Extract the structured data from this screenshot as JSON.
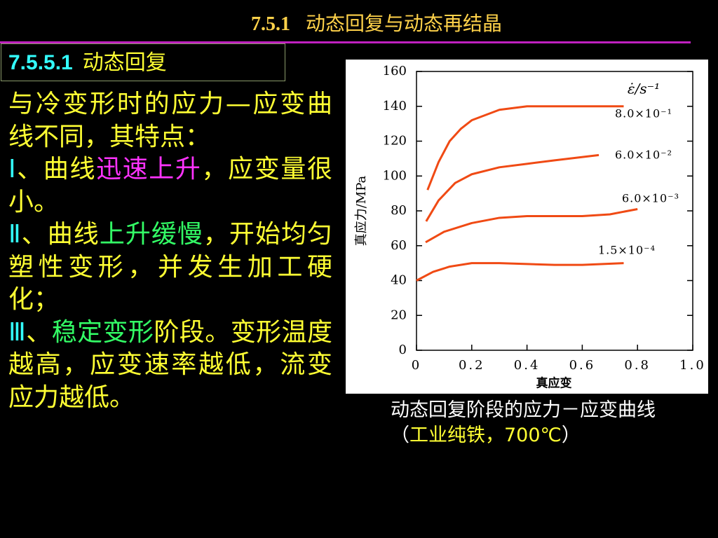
{
  "header": {
    "number": "7.5.1",
    "title": "动态回复与动态再结晶"
  },
  "section": {
    "number": "7.5.5.1",
    "title": "动态回复"
  },
  "body": {
    "paragraphs": [
      [
        "与冷变形时的应力—应变曲线不同，其特点："
      ],
      [
        "Ⅰ",
        "、曲线",
        "迅速上升",
        "，应变量很小。"
      ],
      [
        "Ⅱ",
        "、曲线",
        "上升缓慢",
        "，开始均匀塑性变形，并发生加工硬化；"
      ],
      [
        "Ⅲ",
        "、",
        "稳定变形",
        "阶段。变形温度越高，应变速率越低，流变应力越低。"
      ]
    ]
  },
  "caption": [
    "动态回复阶段的应力－应变曲线（",
    "工业纯铁，700℃",
    "）"
  ],
  "chart_data": {
    "type": "line",
    "x_label": "真应变",
    "y_label": "真应力/MPa",
    "legend_title": "ε̇/s⁻¹",
    "xlim": [
      0,
      1
    ],
    "xticks": [
      0,
      0.2,
      0.4,
      0.6,
      0.8,
      {
        "value": 1,
        "label": "1.0"
      }
    ],
    "ylim": [
      0,
      160
    ],
    "yticks": [
      0,
      20,
      40,
      60,
      80,
      100,
      120,
      140,
      160
    ],
    "series": [
      {
        "name": "8.0×10⁻¹",
        "color": "#f04a14",
        "x": [
          0.04,
          0.08,
          0.12,
          0.16,
          0.2,
          0.3,
          0.4,
          0.5,
          0.6,
          0.75
        ],
        "values": [
          92,
          108,
          120,
          127,
          132,
          138,
          140,
          140,
          140,
          140
        ]
      },
      {
        "name": "6.0×10⁻²",
        "color": "#f04a14",
        "x": [
          0.035,
          0.08,
          0.14,
          0.2,
          0.3,
          0.4,
          0.5,
          0.66
        ],
        "values": [
          74,
          86,
          96,
          101,
          105,
          107,
          109,
          112
        ]
      },
      {
        "name": "6.0×10⁻³",
        "color": "#f04a14",
        "x": [
          0.033,
          0.1,
          0.2,
          0.3,
          0.4,
          0.5,
          0.6,
          0.7,
          0.8
        ],
        "values": [
          62,
          68,
          73,
          76,
          77,
          77,
          77,
          78,
          81
        ]
      },
      {
        "name": "1.5×10⁻⁴",
        "color": "#f04a14",
        "x": [
          0,
          0.06,
          0.12,
          0.2,
          0.3,
          0.4,
          0.5,
          0.6,
          0.75
        ],
        "values": [
          40,
          45,
          48,
          50,
          50,
          49.5,
          49,
          49,
          50
        ]
      }
    ]
  }
}
